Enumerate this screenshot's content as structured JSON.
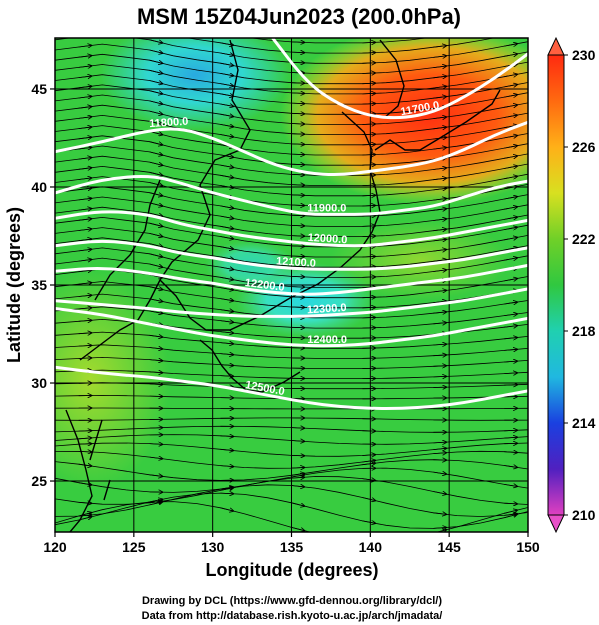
{
  "title": "MSM 15Z04Jun2023 (200.0hPa)",
  "xlabel": "Longitude (degrees)",
  "ylabel": "Latitude  (degrees)",
  "x_ticks": [
    "120",
    "125",
    "130",
    "135",
    "140",
    "145",
    "150"
  ],
  "y_ticks": [
    "25",
    "30",
    "35",
    "40",
    "45"
  ],
  "colorbar_ticks": [
    "230",
    "226",
    "222",
    "218",
    "214",
    "210"
  ],
  "contour_labels": [
    "11700.0",
    "11800.0",
    "11900.0",
    "12000.0",
    "12100.0",
    "12200.0",
    "12300.0",
    "12400.0",
    "12500.0"
  ],
  "credits": {
    "line1": "Drawing by DCL (https://www.gfd-dennou.org/library/dcl/)",
    "line2": "Data from http://database.rish.kyoto-u.ac.jp/arch/jmadata/"
  },
  "chart_data": {
    "type": "heatmap",
    "title": "MSM 15Z04Jun2023 (200.0hPa)",
    "xlabel": "Longitude (degrees)",
    "ylabel": "Latitude  (degrees)",
    "xlim": [
      120,
      150
    ],
    "ylim": [
      22.4,
      47.6
    ],
    "x_ticks": [
      120,
      125,
      130,
      135,
      140,
      145,
      150
    ],
    "y_ticks": [
      25,
      30,
      35,
      40,
      45
    ],
    "colorbar_range": [
      210,
      230
    ],
    "colorbar_ticks": [
      230,
      226,
      222,
      218,
      214,
      210
    ],
    "colors": {
      "210": "#e040c0",
      "214": "#1a2fe0",
      "218": "#20d0c8",
      "222": "#30c840",
      "226": "#d8e020",
      "230": "#ff3a10"
    },
    "temperature_regions": [
      {
        "lon": 142,
        "lat": 45,
        "value": 229
      },
      {
        "lon": 138,
        "lat": 46.5,
        "value": 228
      },
      {
        "lon": 127,
        "lat": 45.5,
        "value": 219
      },
      {
        "lon": 135,
        "lat": 34.5,
        "value": 219
      },
      {
        "lon": 128,
        "lat": 38,
        "value": 222
      },
      {
        "lon": 135,
        "lat": 26,
        "value": 222
      },
      {
        "lon": 123,
        "lat": 30,
        "value": 224
      }
    ],
    "height_contours": [
      {
        "label": "11700.0",
        "lon": [
          133.8,
          136,
          138,
          140,
          142,
          144,
          146,
          148,
          150
        ],
        "lat": [
          47.6,
          45.3,
          44.2,
          43.6,
          43.5,
          43.8,
          44.6,
          45.6,
          46.8
        ]
      },
      {
        "label": "11800.0",
        "lon": [
          120,
          123,
          126,
          128,
          130,
          132,
          134,
          136,
          138,
          140,
          142,
          144,
          146,
          148,
          150
        ],
        "lat": [
          41.8,
          42.3,
          42.9,
          43.0,
          42.5,
          41.8,
          41.1,
          40.7,
          40.6,
          40.8,
          41.0,
          41.3,
          41.9,
          42.7,
          43.3
        ]
      },
      {
        "label": "11900.0",
        "lon": [
          120,
          123,
          126,
          128,
          130,
          132,
          134,
          136,
          138,
          140,
          142,
          144,
          146,
          148,
          150
        ],
        "lat": [
          39.7,
          40.4,
          40.6,
          40.2,
          39.7,
          39.3,
          38.9,
          38.6,
          38.6,
          38.6,
          38.8,
          39.0,
          39.5,
          40.0,
          40.3
        ]
      },
      {
        "label": "12000.0",
        "lon": [
          120,
          123,
          126,
          128,
          130,
          132,
          134,
          136,
          138,
          140,
          142,
          144,
          146,
          148,
          150
        ],
        "lat": [
          38.4,
          38.8,
          38.6,
          38.1,
          37.8,
          37.5,
          37.3,
          37.1,
          37.0,
          37.0,
          37.2,
          37.4,
          37.7,
          38.0,
          38.3
        ]
      },
      {
        "label": "12100.0",
        "lon": [
          120,
          123,
          126,
          128,
          130,
          132,
          134,
          136,
          138,
          140,
          142,
          144,
          146,
          148,
          150
        ],
        "lat": [
          37.0,
          37.3,
          37.0,
          36.6,
          36.4,
          36.1,
          35.9,
          35.8,
          35.8,
          35.8,
          35.9,
          36.1,
          36.3,
          36.6,
          36.9
        ]
      },
      {
        "label": "12200.0",
        "lon": [
          120,
          123,
          126,
          128,
          130,
          132,
          134,
          136,
          138,
          140,
          142,
          144,
          146,
          148,
          150
        ],
        "lat": [
          35.7,
          35.9,
          35.6,
          35.3,
          35.1,
          34.8,
          34.6,
          34.5,
          34.6,
          34.8,
          35.0,
          35.2,
          35.4,
          35.7,
          36.0
        ]
      },
      {
        "label": "12300.0",
        "lon": [
          120,
          123,
          126,
          128,
          130,
          132,
          134,
          136,
          138,
          140,
          142,
          144,
          146,
          148,
          150
        ],
        "lat": [
          34.2,
          34.0,
          33.8,
          33.6,
          33.5,
          33.4,
          33.4,
          33.4,
          33.5,
          33.6,
          33.8,
          34.0,
          34.2,
          34.5,
          34.8
        ]
      },
      {
        "label": "12400.0",
        "lon": [
          120,
          123,
          126,
          128,
          130,
          132,
          134,
          136,
          138,
          140,
          142,
          144,
          146,
          148,
          150
        ],
        "lat": [
          33.8,
          33.5,
          33.0,
          32.7,
          32.4,
          32.2,
          32.0,
          31.9,
          31.9,
          32.0,
          32.2,
          32.4,
          32.7,
          33.0,
          33.3
        ]
      },
      {
        "label": "12500.0",
        "lon": [
          120,
          123,
          126,
          128,
          130,
          132,
          134,
          136,
          138,
          140,
          142,
          144,
          146,
          148,
          150
        ],
        "lat": [
          30.8,
          30.5,
          30.3,
          30.1,
          29.9,
          29.6,
          29.3,
          29.0,
          28.8,
          28.7,
          28.7,
          28.8,
          29.0,
          29.3,
          29.6
        ]
      }
    ]
  }
}
